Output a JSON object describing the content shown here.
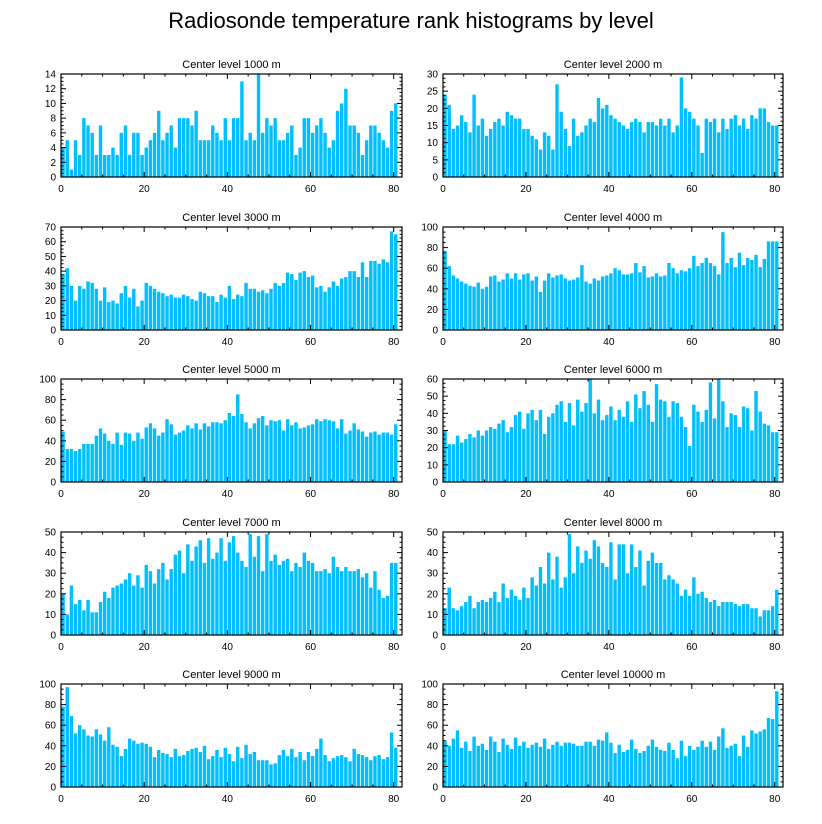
{
  "title": "Radiosonde temperature rank histograms by level",
  "bar_color": "#00bfff",
  "chart_data": [
    {
      "type": "bar",
      "title": "Center level 1000 m",
      "xlim": [
        0,
        82
      ],
      "ylim": [
        0,
        14
      ],
      "xticks": [
        0,
        20,
        40,
        60,
        80
      ],
      "yticks": [
        0,
        2,
        4,
        6,
        8,
        10,
        12,
        14
      ],
      "values": [
        4,
        5,
        1,
        5,
        3,
        8,
        7,
        6,
        3,
        7,
        3,
        3,
        4,
        3,
        6,
        7,
        3,
        6,
        6,
        3,
        4,
        5,
        6,
        9,
        5,
        6,
        7,
        4,
        8,
        8,
        8,
        7,
        9,
        5,
        5,
        5,
        7,
        6,
        5,
        8,
        5,
        8,
        8,
        13,
        5,
        6,
        5,
        14,
        6,
        8,
        7,
        8,
        5,
        5,
        6,
        7,
        3,
        4,
        8,
        8,
        6,
        7,
        8,
        6,
        4,
        5,
        9,
        10,
        12,
        7,
        7,
        6,
        3,
        5,
        7,
        7,
        6,
        5,
        4,
        9,
        10
      ]
    },
    {
      "type": "bar",
      "title": "Center level 2000 m",
      "xlim": [
        0,
        82
      ],
      "ylim": [
        0,
        30
      ],
      "xticks": [
        0,
        20,
        40,
        60,
        80
      ],
      "yticks": [
        0,
        5,
        10,
        15,
        20,
        25,
        30
      ],
      "values": [
        24,
        21,
        14,
        15,
        18,
        16,
        13,
        24,
        15,
        17,
        12,
        14,
        16,
        17,
        15,
        19,
        18,
        17,
        17,
        14,
        14,
        12,
        11,
        8,
        13,
        12,
        8,
        27,
        19,
        14,
        9,
        17,
        12,
        13,
        15,
        17,
        16,
        23,
        20,
        21,
        18,
        17,
        16,
        15,
        14,
        16,
        17,
        16,
        13,
        16,
        16,
        15,
        17,
        15,
        17,
        13,
        15,
        29,
        20,
        19,
        17,
        15,
        7,
        17,
        16,
        17,
        13,
        17,
        14,
        17,
        18,
        15,
        17,
        14,
        18,
        17,
        20,
        20,
        16,
        15,
        15
      ]
    },
    {
      "type": "bar",
      "title": "Center level 3000 m",
      "xlim": [
        0,
        82
      ],
      "ylim": [
        0,
        70
      ],
      "xticks": [
        0,
        20,
        40,
        60,
        80
      ],
      "yticks": [
        0,
        10,
        20,
        30,
        40,
        50,
        60,
        70
      ],
      "values": [
        38,
        42,
        30,
        20,
        30,
        28,
        33,
        32,
        28,
        20,
        29,
        19,
        20,
        18,
        25,
        30,
        22,
        28,
        16,
        20,
        32,
        30,
        28,
        26,
        25,
        23,
        24,
        22,
        22,
        24,
        23,
        21,
        20,
        26,
        25,
        23,
        23,
        19,
        24,
        22,
        30,
        21,
        24,
        23,
        32,
        28,
        28,
        26,
        27,
        25,
        28,
        32,
        30,
        32,
        39,
        38,
        34,
        39,
        40,
        36,
        37,
        29,
        30,
        26,
        29,
        33,
        30,
        35,
        36,
        40,
        40,
        36,
        46,
        36,
        47,
        47,
        45,
        48,
        46,
        67,
        65
      ]
    },
    {
      "type": "bar",
      "title": "Center level 4000 m",
      "xlim": [
        0,
        82
      ],
      "ylim": [
        0,
        100
      ],
      "xticks": [
        0,
        20,
        40,
        60,
        80
      ],
      "yticks": [
        0,
        20,
        40,
        60,
        80,
        100
      ],
      "values": [
        77,
        62,
        53,
        50,
        47,
        45,
        43,
        42,
        46,
        40,
        42,
        52,
        53,
        47,
        49,
        55,
        50,
        55,
        49,
        54,
        55,
        48,
        52,
        37,
        48,
        55,
        51,
        53,
        54,
        50,
        48,
        49,
        51,
        63,
        47,
        45,
        50,
        48,
        52,
        53,
        55,
        60,
        58,
        54,
        54,
        55,
        65,
        56,
        62,
        51,
        52,
        55,
        52,
        53,
        65,
        60,
        55,
        58,
        57,
        60,
        72,
        62,
        65,
        70,
        65,
        62,
        54,
        95,
        65,
        70,
        61,
        75,
        63,
        70,
        68,
        73,
        61,
        69,
        86,
        86,
        86
      ]
    },
    {
      "type": "bar",
      "title": "Center level 5000 m",
      "xlim": [
        0,
        82
      ],
      "ylim": [
        0,
        100
      ],
      "xticks": [
        0,
        20,
        40,
        60,
        80
      ],
      "yticks": [
        0,
        20,
        40,
        60,
        80,
        100
      ],
      "values": [
        49,
        32,
        32,
        30,
        32,
        37,
        37,
        37,
        45,
        52,
        47,
        40,
        37,
        48,
        36,
        48,
        47,
        40,
        48,
        42,
        53,
        57,
        52,
        45,
        48,
        61,
        56,
        46,
        48,
        50,
        55,
        52,
        57,
        51,
        57,
        54,
        58,
        58,
        57,
        60,
        67,
        64,
        85,
        66,
        58,
        52,
        57,
        62,
        64,
        55,
        60,
        59,
        60,
        50,
        61,
        55,
        58,
        52,
        53,
        55,
        56,
        61,
        59,
        61,
        60,
        59,
        52,
        61,
        47,
        50,
        57,
        51,
        49,
        44,
        48,
        49,
        46,
        48,
        48,
        46,
        56
      ]
    },
    {
      "type": "bar",
      "title": "Center level 6000 m",
      "xlim": [
        0,
        82
      ],
      "ylim": [
        0,
        60
      ],
      "xticks": [
        0,
        20,
        40,
        60,
        80
      ],
      "yticks": [
        0,
        10,
        20,
        30,
        40,
        50,
        60
      ],
      "values": [
        30,
        22,
        22,
        27,
        23,
        25,
        28,
        26,
        30,
        27,
        30,
        32,
        31,
        34,
        36,
        29,
        32,
        39,
        41,
        31,
        40,
        42,
        36,
        42,
        28,
        38,
        40,
        45,
        47,
        35,
        46,
        33,
        48,
        41,
        46,
        60,
        40,
        48,
        36,
        39,
        44,
        36,
        42,
        38,
        47,
        35,
        51,
        43,
        53,
        45,
        35,
        57,
        48,
        47,
        38,
        47,
        46,
        38,
        32,
        21,
        45,
        41,
        35,
        42,
        58,
        37,
        60,
        47,
        32,
        40,
        39,
        32,
        44,
        43,
        30,
        53,
        41,
        34,
        33,
        29,
        29
      ]
    },
    {
      "type": "bar",
      "title": "Center level 7000 m",
      "xlim": [
        0,
        82
      ],
      "ylim": [
        0,
        50
      ],
      "xticks": [
        0,
        20,
        40,
        60,
        80
      ],
      "yticks": [
        0,
        10,
        20,
        30,
        40,
        50
      ],
      "values": [
        20,
        10,
        24,
        15,
        17,
        12,
        17,
        11,
        11,
        16,
        21,
        18,
        23,
        24,
        25,
        27,
        30,
        24,
        29,
        23,
        34,
        31,
        25,
        32,
        35,
        27,
        32,
        39,
        41,
        30,
        44,
        36,
        43,
        46,
        35,
        47,
        37,
        40,
        47,
        36,
        45,
        48,
        40,
        36,
        33,
        49,
        38,
        48,
        31,
        49,
        36,
        39,
        34,
        36,
        37,
        31,
        35,
        33,
        40,
        36,
        35,
        31,
        31,
        32,
        30,
        38,
        33,
        31,
        33,
        31,
        31,
        32,
        28,
        30,
        23,
        31,
        22,
        18,
        19,
        35,
        35
      ]
    },
    {
      "type": "bar",
      "title": "Center level 8000 m",
      "xlim": [
        0,
        82
      ],
      "ylim": [
        0,
        50
      ],
      "xticks": [
        0,
        20,
        40,
        60,
        80
      ],
      "yticks": [
        0,
        10,
        20,
        30,
        40,
        50
      ],
      "values": [
        13,
        23,
        13,
        12,
        14,
        16,
        19,
        13,
        16,
        17,
        16,
        18,
        21,
        16,
        25,
        18,
        22,
        19,
        17,
        23,
        18,
        28,
        24,
        33,
        25,
        40,
        27,
        38,
        23,
        28,
        49,
        30,
        43,
        35,
        41,
        37,
        46,
        43,
        35,
        33,
        45,
        27,
        44,
        44,
        30,
        44,
        33,
        41,
        24,
        36,
        40,
        35,
        35,
        27,
        29,
        27,
        25,
        19,
        22,
        19,
        28,
        20,
        21,
        18,
        16,
        17,
        14,
        16,
        16,
        16,
        15,
        14,
        15,
        15,
        13,
        13,
        9,
        12,
        12,
        14,
        22
      ]
    },
    {
      "type": "bar",
      "title": "Center level 9000 m",
      "xlim": [
        0,
        82
      ],
      "ylim": [
        0,
        100
      ],
      "xticks": [
        0,
        20,
        40,
        60,
        80
      ],
      "yticks": [
        0,
        20,
        40,
        60,
        80,
        100
      ],
      "values": [
        78,
        97,
        69,
        52,
        60,
        56,
        50,
        49,
        56,
        51,
        45,
        58,
        41,
        39,
        30,
        37,
        47,
        45,
        42,
        43,
        42,
        39,
        29,
        36,
        33,
        32,
        29,
        37,
        30,
        31,
        35,
        37,
        38,
        34,
        40,
        27,
        30,
        36,
        29,
        38,
        32,
        25,
        39,
        28,
        41,
        32,
        34,
        26,
        26,
        26,
        22,
        23,
        31,
        36,
        30,
        37,
        29,
        34,
        26,
        34,
        30,
        37,
        47,
        31,
        25,
        28,
        30,
        31,
        29,
        25,
        37,
        32,
        31,
        29,
        26,
        30,
        31,
        27,
        29,
        53,
        38
      ]
    },
    {
      "type": "bar",
      "title": "Center level 10000 m",
      "xlim": [
        0,
        82
      ],
      "ylim": [
        0,
        100
      ],
      "xticks": [
        0,
        20,
        40,
        60,
        80
      ],
      "yticks": [
        0,
        20,
        40,
        60,
        80,
        100
      ],
      "values": [
        45,
        40,
        47,
        55,
        38,
        44,
        35,
        49,
        40,
        42,
        36,
        49,
        44,
        34,
        47,
        41,
        37,
        48,
        40,
        44,
        38,
        41,
        43,
        39,
        47,
        37,
        41,
        44,
        40,
        43,
        43,
        42,
        40,
        40,
        44,
        44,
        40,
        46,
        45,
        53,
        43,
        33,
        41,
        34,
        36,
        46,
        37,
        33,
        35,
        40,
        46,
        39,
        36,
        35,
        43,
        36,
        28,
        45,
        30,
        40,
        36,
        39,
        45,
        39,
        44,
        36,
        49,
        57,
        38,
        40,
        42,
        30,
        50,
        39,
        55,
        52,
        54,
        56,
        67,
        66,
        93
      ]
    }
  ]
}
